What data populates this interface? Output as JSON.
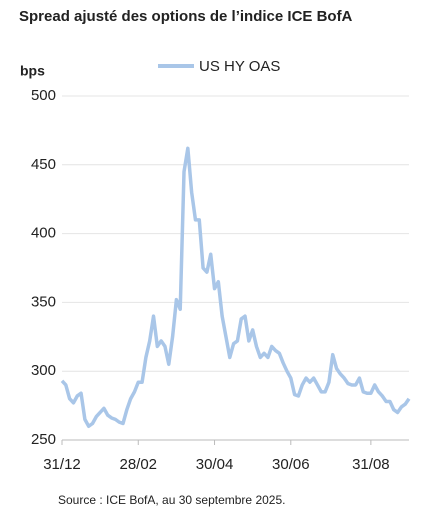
{
  "chart_data": {
    "type": "line",
    "title": "Spread ajusté des options de l’indice ICE BofA",
    "y_label": "bps",
    "source": "Source : ICE BofA, au 30 septembre 2025.",
    "categories": [
      "31/12",
      null,
      null,
      null,
      null,
      null,
      null,
      null,
      null,
      null,
      null,
      null,
      null,
      null,
      null,
      null,
      null,
      null,
      null,
      null,
      "28/02",
      null,
      null,
      null,
      null,
      null,
      null,
      null,
      null,
      null,
      null,
      null,
      null,
      null,
      null,
      null,
      null,
      null,
      null,
      null,
      "30/04",
      null,
      null,
      null,
      null,
      null,
      null,
      null,
      null,
      null,
      null,
      null,
      null,
      null,
      null,
      null,
      null,
      null,
      null,
      null,
      "30/06",
      null,
      null,
      null,
      null,
      null,
      null,
      null,
      null,
      null,
      null,
      null,
      null,
      null,
      null,
      null,
      null,
      null,
      null,
      null,
      null,
      "31/08",
      null,
      null,
      null,
      null,
      null,
      null,
      null,
      null,
      null,
      null
    ],
    "series": [
      {
        "name": "US HY OAS",
        "color": "#a9c6e8",
        "values": [
          293,
          290,
          280,
          277,
          282,
          284,
          265,
          260,
          262,
          267,
          270,
          273,
          268,
          266,
          265,
          263,
          262,
          272,
          280,
          285,
          292,
          292,
          310,
          322,
          340,
          318,
          322,
          318,
          305,
          325,
          352,
          345,
          445,
          462,
          430,
          410,
          410,
          375,
          372,
          385,
          360,
          365,
          340,
          325,
          310,
          320,
          322,
          338,
          340,
          322,
          330,
          318,
          310,
          313,
          310,
          318,
          315,
          313,
          306,
          300,
          295,
          283,
          282,
          290,
          295,
          292,
          295,
          290,
          285,
          285,
          292,
          312,
          302,
          298,
          295,
          291,
          290,
          290,
          295,
          285,
          284,
          284,
          290,
          285,
          282,
          278,
          278,
          272,
          270,
          274,
          276,
          280
        ]
      }
    ],
    "ylim": [
      250,
      500
    ],
    "yticks": [
      250,
      300,
      350,
      400,
      450,
      500
    ],
    "grid": true,
    "legend": "top"
  }
}
